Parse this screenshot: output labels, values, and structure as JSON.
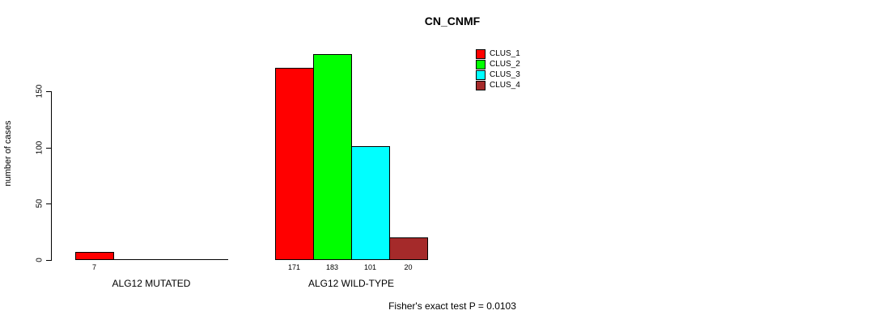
{
  "chart_data": {
    "type": "bar",
    "title": "CN_CNMF",
    "ylabel": "number of cases",
    "annotation": "Fisher's exact test P = 0.0103",
    "categories": [
      "ALG12 MUTATED",
      "ALG12 WILD-TYPE"
    ],
    "series": [
      {
        "name": "CLUS_1",
        "color": "#FF0000",
        "values": [
          7,
          171
        ]
      },
      {
        "name": "CLUS_2",
        "color": "#00FF00",
        "values": [
          0,
          183
        ]
      },
      {
        "name": "CLUS_3",
        "color": "#00FFFF",
        "values": [
          0,
          101
        ]
      },
      {
        "name": "CLUS_4",
        "color": "#A52A2A",
        "values": [
          0,
          20
        ]
      }
    ],
    "bar_labels": [
      [
        "7",
        "",
        "",
        ""
      ],
      [
        "171",
        "183",
        "101",
        "20"
      ]
    ],
    "yticks": [
      0,
      50,
      100,
      150
    ],
    "ylim": [
      0,
      190
    ],
    "grid": false,
    "legend_position": "top-right"
  }
}
